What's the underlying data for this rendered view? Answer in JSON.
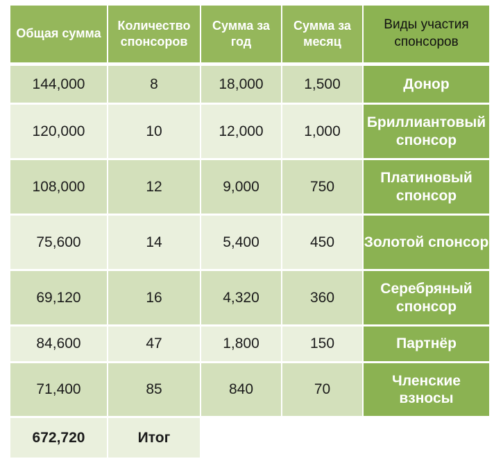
{
  "headers": {
    "total": "Общая сумма",
    "count": "Количество спонсоров",
    "year": "Сумма за год",
    "month": "Сумма за месяц",
    "types": "Виды участия спонсоров"
  },
  "rows": [
    {
      "total": "144,000",
      "count": "8",
      "year": "18,000",
      "month": "1,500",
      "type": "Донор"
    },
    {
      "total": "120,000",
      "count": "10",
      "year": "12,000",
      "month": "1,000",
      "type": "Бриллиантовый спонсор"
    },
    {
      "total": "108,000",
      "count": "12",
      "year": "9,000",
      "month": "750",
      "type": "Платиновый спонсор"
    },
    {
      "total": "75,600",
      "count": "14",
      "year": "5,400",
      "month": "450",
      "type": "Золотой спонсор"
    },
    {
      "total": "69,120",
      "count": "16",
      "year": "4,320",
      "month": "360",
      "type": "Серебряный спонсор"
    },
    {
      "total": "84,600",
      "count": "47",
      "year": "1,800",
      "month": "150",
      "type": "Партнёр"
    },
    {
      "total": "71,400",
      "count": "85",
      "year": "840",
      "month": "70",
      "type": "Членские взносы"
    }
  ],
  "summary": {
    "total": "672,720",
    "label": "Итог"
  },
  "colors": {
    "header": "#95b75b",
    "type_column": "#8bb252",
    "row_dark": "#d3e0bb",
    "row_light": "#eaf0dd"
  }
}
